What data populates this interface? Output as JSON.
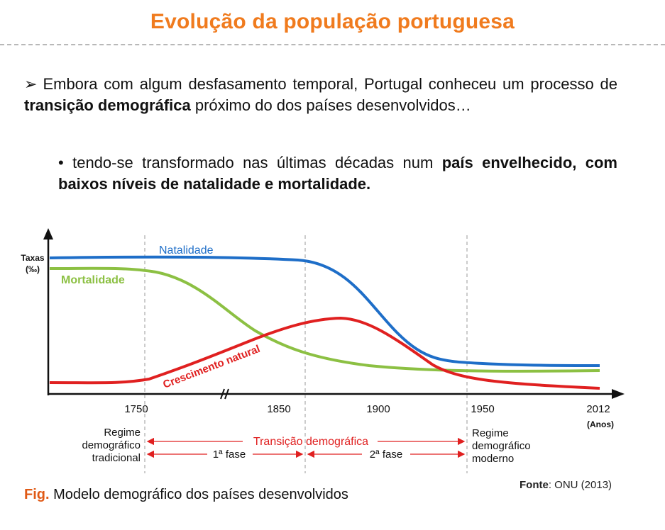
{
  "header": {
    "title": "Evolução da população portuguesa"
  },
  "intro": {
    "bullet_mark": "➢",
    "text_before": "Embora com algum desfasamento temporal, Portugal conheceu um processo de ",
    "text_bold": "transição demográfica",
    "text_after": " próximo do dos países desenvolvidos…"
  },
  "sub_point": {
    "bullet_mark": "•",
    "text_before": "tendo-se transformado nas últimas décadas num ",
    "text_bold": "país envelhecido, com baixos níveis de natalidade e mortalidade."
  },
  "chart_data": {
    "type": "line",
    "ylabel": "Taxas (‰)",
    "xlabel": "(Anos)",
    "x_ticks": [
      "1750",
      "1850",
      "1900",
      "1950",
      "2012"
    ],
    "axis_break_between": [
      "1750",
      "1850"
    ],
    "series": [
      {
        "name": "Natalidade",
        "color": "#1e6ec8"
      },
      {
        "name": "Mortalidade",
        "color": "#8cc043"
      },
      {
        "name": "Crescimento natural",
        "color": "#e02020"
      }
    ],
    "phase_dividers": [
      "1750",
      "1850",
      "1950"
    ],
    "annotations": {
      "regime_left": [
        "Regime",
        "demográfico",
        "tradicional"
      ],
      "regime_right": [
        "Regime",
        "demográfico",
        "moderno"
      ],
      "transition": "Transição demográfica",
      "phase1": "1ª fase",
      "phase2": "2ª fase"
    },
    "grid": false,
    "legend": "inline labels on lines"
  },
  "caption": {
    "fig_label": "Fig.",
    "text": "Modelo demográfico dos países desenvolvidos"
  },
  "source": {
    "label": "Fonte",
    "value": "ONU (2013)"
  }
}
